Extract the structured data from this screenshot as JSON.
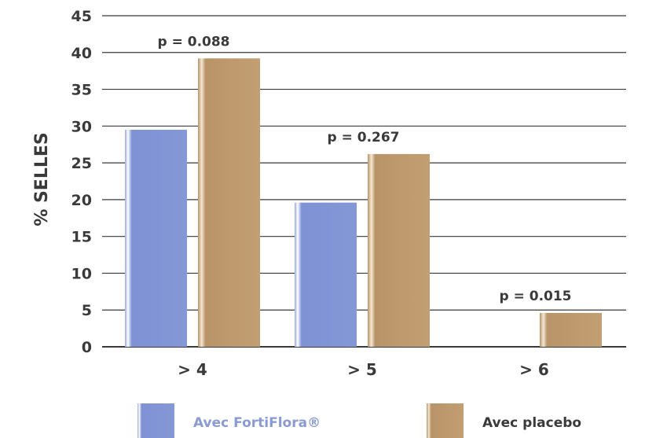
{
  "chart_data": {
    "type": "bar",
    "categories": [
      "> 4",
      "> 5",
      "> 6"
    ],
    "series": [
      {
        "name": "Avec FortiFlora®",
        "values": [
          29.5,
          19.6,
          0
        ],
        "color": "#8497d6",
        "label_color": "#8a9ad2"
      },
      {
        "name": "Avec placebo",
        "values": [
          39.2,
          26.2,
          4.6
        ],
        "color": "#c29f73",
        "label_color": "#3a3a3a"
      }
    ],
    "annotations": [
      "p = 0.088",
      "p = 0.267",
      "p = 0.015"
    ],
    "ylabel": "% SELLES",
    "xlabel": "",
    "ylim": [
      0,
      45
    ],
    "yticks": [
      0,
      5,
      10,
      15,
      20,
      25,
      30,
      35,
      40,
      45
    ],
    "grid": true,
    "legend_position": "bottom"
  }
}
